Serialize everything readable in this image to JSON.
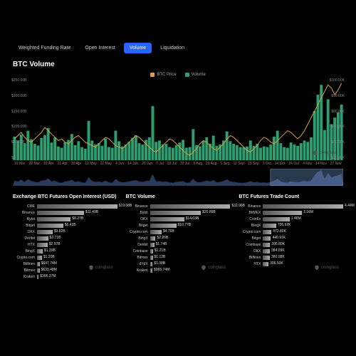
{
  "colors": {
    "bg": "#000000",
    "volume_bar": "#2e9e71",
    "price_line": "#d8a03c",
    "brush_area": "#2a3a5a",
    "brush_selection": "#4a6aa0",
    "tab_active_bg": "#2962ff",
    "text": "#ffffff",
    "muted": "#888888",
    "bar_gradient_from": "#555555",
    "bar_gradient_to": "#aaaaaa"
  },
  "tabs": [
    {
      "label": "Weighted Funding Rate",
      "active": false
    },
    {
      "label": "Open Interest",
      "active": false
    },
    {
      "label": "Volume",
      "active": true
    },
    {
      "label": "Liquidation",
      "active": false
    }
  ],
  "page_title": "BTC Volume",
  "legend": [
    {
      "label": "BTC Price",
      "color": "#d8a03c"
    },
    {
      "label": "Volume",
      "color": "#2e9e71"
    }
  ],
  "main_chart": {
    "left_axis_label_prefix": "$",
    "left_axis_labels": [
      "$250.00B",
      "$200.00B",
      "$150.00B",
      "$100.00B",
      "$50.00B",
      "$0"
    ],
    "right_axis_labels": [
      "$100.00K",
      "$90.00K",
      "$80.00K",
      "$70.00K",
      "$60.00K",
      "$50.00K"
    ],
    "y_max_volume": 250,
    "y_max_price": 100000,
    "y_min_price": 50000,
    "x_labels": [
      "19 Mar",
      "28 Mar",
      "10 Apr",
      "21 Apr",
      "30 Apr",
      "12 May",
      "22 May",
      "4 Jun",
      "14 Jun",
      "26 Jun",
      "7 Jul",
      "18 Jul",
      "30 Jul",
      "9 Aug",
      "21 Aug",
      "1 Sep",
      "11 Sep",
      "23 Sep",
      "3 Oct",
      "14 Oct",
      "24 Oct",
      "4 Nov",
      "14 Nov",
      "27 Nov"
    ],
    "volume_data": [
      72,
      60,
      78,
      52,
      90,
      64,
      50,
      45,
      68,
      76,
      98,
      54,
      70,
      42,
      38,
      55,
      62,
      80,
      46,
      58,
      40,
      35,
      120,
      60,
      48,
      52,
      44,
      66,
      40,
      38,
      90,
      58,
      42,
      48,
      56,
      68,
      76,
      52,
      48,
      62,
      70,
      165,
      56,
      60,
      48,
      50,
      40,
      38,
      46,
      54,
      62,
      38,
      40,
      95,
      46,
      42,
      58,
      70,
      50,
      75,
      44,
      48,
      60,
      88,
      58,
      50,
      46,
      40,
      40,
      42,
      60,
      44,
      50,
      38,
      42,
      40,
      48,
      72,
      90,
      52,
      40,
      38,
      54,
      48,
      44,
      52,
      60,
      56,
      70,
      150,
      200,
      230,
      92,
      186,
      110,
      130,
      146,
      170
    ],
    "price_data": [
      63000,
      65000,
      67000,
      64000,
      62000,
      61000,
      63000,
      65000,
      67000,
      70000,
      68000,
      66000,
      64000,
      62000,
      63000,
      61000,
      60000,
      62000,
      64000,
      65000,
      63000,
      61000,
      60000,
      59000,
      58000,
      60000,
      62000,
      64000,
      63000,
      61000,
      59000,
      58000,
      57000,
      59000,
      61000,
      63000,
      65000,
      64000,
      62000,
      60000,
      58000,
      56000,
      55000,
      57000,
      59000,
      61000,
      63000,
      62000,
      60000,
      58000,
      56000,
      54000,
      53000,
      55000,
      57000,
      60000,
      62000,
      61000,
      59000,
      57000,
      56000,
      58000,
      60000,
      63000,
      65000,
      64000,
      62000,
      60000,
      58000,
      56000,
      55000,
      57000,
      59000,
      62000,
      64000,
      63000,
      61000,
      60000,
      62000,
      64000,
      66000,
      68000,
      67000,
      65000,
      63000,
      65000,
      68000,
      72000,
      76000,
      80000,
      84000,
      88000,
      92000,
      96000,
      94000,
      90000,
      93000,
      97000
    ]
  },
  "brush": {
    "area_data": [
      12,
      10,
      14,
      9,
      15,
      11,
      9,
      8,
      12,
      13,
      17,
      10,
      12,
      8,
      7,
      10,
      11,
      14,
      9,
      10,
      8,
      7,
      20,
      11,
      9,
      10,
      8,
      12,
      8,
      7,
      16,
      10,
      8,
      9,
      10,
      12,
      13,
      10,
      9,
      11,
      12,
      27,
      10,
      11,
      9,
      10,
      8,
      7,
      9,
      10,
      11,
      7,
      8,
      16,
      9,
      8,
      10,
      12,
      10,
      13,
      8,
      9,
      11,
      15,
      10,
      9,
      8,
      7,
      7,
      8,
      11,
      8,
      9,
      7,
      8,
      7,
      9,
      12,
      16,
      10,
      8,
      7,
      10,
      9,
      8,
      10,
      11,
      10,
      12,
      24,
      32,
      36,
      16,
      30,
      19,
      22,
      24,
      28
    ],
    "selection_start_pct": 78,
    "selection_end_pct": 100
  },
  "panels": [
    {
      "title": "Exchange BTC Futures Open Interest (USD)",
      "max": 19.68,
      "rows": [
        {
          "label": "CME",
          "val": 19.68,
          "text": "$19.68B"
        },
        {
          "label": "Binance",
          "val": 11.49,
          "text": "$11.49B"
        },
        {
          "label": "Bybit",
          "val": 8.27,
          "text": "$8.27B"
        },
        {
          "label": "Bitget",
          "val": 6.43,
          "text": "$6.43B"
        },
        {
          "label": "OKX",
          "val": 3.82,
          "text": "$3.82B"
        },
        {
          "label": "Deribit",
          "val": 2.71,
          "text": "$2.71B"
        },
        {
          "label": "HTX",
          "val": 2.57,
          "text": "$2.57B"
        },
        {
          "label": "BingX",
          "val": 1.39,
          "text": "$1.39B"
        },
        {
          "label": "Crypto.com",
          "val": 1.2,
          "text": "$1.20B"
        },
        {
          "label": "Bitfinex",
          "val": 0.647,
          "text": "$647.74M"
        },
        {
          "label": "Bitmex",
          "val": 0.633,
          "text": "$633.48M"
        },
        {
          "label": "Kraken",
          "val": 0.396,
          "text": "$396.37M"
        }
      ]
    },
    {
      "title": "BTC Volume",
      "max": 32.96,
      "rows": [
        {
          "label": "Binance",
          "val": 32.96,
          "text": "$32.96B"
        },
        {
          "label": "Bybit",
          "val": 20.89,
          "text": "$20.89B"
        },
        {
          "label": "OKX",
          "val": 14.03,
          "text": "$14.03B"
        },
        {
          "label": "Bitget",
          "val": 10.77,
          "text": "$10.77B"
        },
        {
          "label": "Crypto.com",
          "val": 4.76,
          "text": "$4.76B"
        },
        {
          "label": "BingX",
          "val": 2.26,
          "text": "$2.26B"
        },
        {
          "label": "Deribit",
          "val": 1.74,
          "text": "$1.74B"
        },
        {
          "label": "Coinbase",
          "val": 1.21,
          "text": "$1.21B"
        },
        {
          "label": "Bitmex",
          "val": 1.12,
          "text": "$1.12B"
        },
        {
          "label": "dYdX",
          "val": 1.08,
          "text": "$1.08B"
        },
        {
          "label": "Kraken",
          "val": 0.965,
          "text": "$965.74M"
        }
      ]
    },
    {
      "title": "BTC Futures Trade Count",
      "max": 4.44,
      "rows": [
        {
          "label": "Binance",
          "val": 4.44,
          "text": "4.44M"
        },
        {
          "label": "BitMEX",
          "val": 2.16,
          "text": "2.16M"
        },
        {
          "label": "CoinEx",
          "val": 1.48,
          "text": "1.48M"
        },
        {
          "label": "BingX",
          "val": 0.726,
          "text": "726.92K"
        },
        {
          "label": "Crypto.com",
          "val": 0.472,
          "text": "472.40K"
        },
        {
          "label": "Bitget",
          "val": 0.44,
          "text": "440.91K"
        },
        {
          "label": "Coinbase",
          "val": 0.395,
          "text": "395.80K"
        },
        {
          "label": "OKX",
          "val": 0.384,
          "text": "384.09K"
        },
        {
          "label": "Bitfinex",
          "val": 0.38,
          "text": "380.08K"
        },
        {
          "label": "HTX",
          "val": 0.306,
          "text": "306.50K"
        }
      ]
    }
  ],
  "watermark_text": "coinglass"
}
